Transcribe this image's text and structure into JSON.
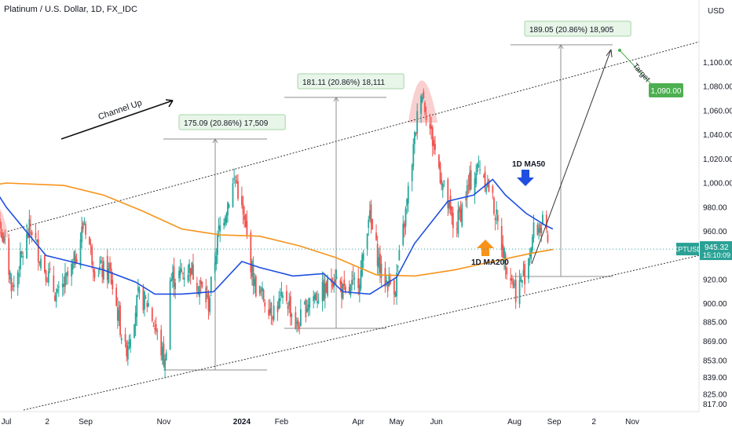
{
  "header": {
    "title": "Platinum / U.S. Dollar, 1D, FX_IDC",
    "currency": "USD"
  },
  "chart_data": {
    "type": "candlestick",
    "symbol": "XPTUSD",
    "timeframe": "1D",
    "ylim": [
      812,
      1120
    ],
    "yticks": [
      817,
      825,
      839,
      853,
      869,
      885,
      900,
      920,
      940,
      960,
      980,
      1000,
      1020,
      1040,
      1060,
      1080,
      1100
    ],
    "ytick_labels": [
      "817.00",
      "825.00",
      "839.00",
      "853.00",
      "869.00",
      "885.00",
      "900.00",
      "920.00",
      "940.00",
      "960.00",
      "980.00",
      "1,000.00",
      "1,020.00",
      "1,040.00",
      "1,060.00",
      "1,080.00",
      "1,100.00"
    ],
    "xticks": [
      {
        "date": "2023-07-01",
        "label": "Jul",
        "bold": false
      },
      {
        "date": "2023-08-02",
        "label": "2",
        "bold": false
      },
      {
        "date": "2023-09-01",
        "label": "Sep",
        "bold": false
      },
      {
        "date": "2023-11-01",
        "label": "Nov",
        "bold": false
      },
      {
        "date": "2024-01-01",
        "label": "2024",
        "bold": true
      },
      {
        "date": "2024-02-01",
        "label": "Feb",
        "bold": false
      },
      {
        "date": "2024-04-01",
        "label": "Apr",
        "bold": false
      },
      {
        "date": "2024-05-01",
        "label": "May",
        "bold": false
      },
      {
        "date": "2024-06-01",
        "label": "Jun",
        "bold": false
      },
      {
        "date": "2024-08-01",
        "label": "Aug",
        "bold": false
      },
      {
        "date": "2024-09-01",
        "label": "Sep",
        "bold": false
      },
      {
        "date": "2024-10-02",
        "label": "2",
        "bold": false
      },
      {
        "date": "2024-11-01",
        "label": "Nov",
        "bold": false
      }
    ],
    "anchors": [
      [
        "2023-06-15",
        950
      ],
      [
        "2023-06-26",
        968
      ],
      [
        "2023-07-06",
        912
      ],
      [
        "2023-07-20",
        965
      ],
      [
        "2023-07-27",
        940
      ],
      [
        "2023-08-10",
        905
      ],
      [
        "2023-08-22",
        930
      ],
      [
        "2023-08-31",
        968
      ],
      [
        "2023-09-08",
        930
      ],
      [
        "2023-09-20",
        925
      ],
      [
        "2023-10-02",
        860
      ],
      [
        "2023-10-12",
        905
      ],
      [
        "2023-10-20",
        900
      ],
      [
        "2023-11-02",
        850
      ],
      [
        "2023-11-06",
        920
      ],
      [
        "2023-11-15",
        925
      ],
      [
        "2023-11-22",
        930
      ],
      [
        "2023-12-06",
        900
      ],
      [
        "2023-12-14",
        960
      ],
      [
        "2023-12-27",
        1005
      ],
      [
        "2024-01-04",
        960
      ],
      [
        "2024-01-11",
        915
      ],
      [
        "2024-01-25",
        895
      ],
      [
        "2024-02-05",
        905
      ],
      [
        "2024-02-13",
        880
      ],
      [
        "2024-02-23",
        905
      ],
      [
        "2024-03-06",
        910
      ],
      [
        "2024-03-13",
        925
      ],
      [
        "2024-03-22",
        905
      ],
      [
        "2024-04-03",
        925
      ],
      [
        "2024-04-09",
        975
      ],
      [
        "2024-04-20",
        920
      ],
      [
        "2024-04-30",
        915
      ],
      [
        "2024-05-08",
        975
      ],
      [
        "2024-05-20",
        1080
      ],
      [
        "2024-05-28",
        1040
      ],
      [
        "2024-06-08",
        990
      ],
      [
        "2024-06-15",
        960
      ],
      [
        "2024-06-27",
        1000
      ],
      [
        "2024-07-05",
        1015
      ],
      [
        "2024-07-14",
        990
      ],
      [
        "2024-07-24",
        940
      ],
      [
        "2024-08-02",
        910
      ],
      [
        "2024-08-09",
        925
      ],
      [
        "2024-08-16",
        960
      ],
      [
        "2024-08-23",
        965
      ],
      [
        "2024-08-28",
        945
      ]
    ],
    "ma50": {
      "name": "1D MA50",
      "color": "#1e4fe0",
      "points": [
        [
          "2023-06-01",
          1030
        ],
        [
          "2023-07-01",
          980
        ],
        [
          "2023-08-01",
          940
        ],
        [
          "2023-08-20",
          935
        ],
        [
          "2023-09-15",
          928
        ],
        [
          "2023-10-10",
          918
        ],
        [
          "2023-10-25",
          908
        ],
        [
          "2023-11-15",
          908
        ],
        [
          "2023-12-10",
          910
        ],
        [
          "2024-01-01",
          935
        ],
        [
          "2024-01-15",
          930
        ],
        [
          "2024-02-10",
          923
        ],
        [
          "2024-03-05",
          925
        ],
        [
          "2024-03-20",
          910
        ],
        [
          "2024-04-10",
          908
        ],
        [
          "2024-05-01",
          922
        ],
        [
          "2024-05-15",
          950
        ],
        [
          "2024-06-10",
          985
        ],
        [
          "2024-06-30",
          990
        ],
        [
          "2024-07-15",
          1003
        ],
        [
          "2024-07-25",
          990
        ],
        [
          "2024-08-10",
          975
        ],
        [
          "2024-08-25",
          965
        ],
        [
          "2024-08-31",
          962
        ]
      ]
    },
    "ma200": {
      "name": "1D MA200",
      "color": "#f7931a",
      "points": [
        [
          "2023-06-01",
          995
        ],
        [
          "2023-07-01",
          1000
        ],
        [
          "2023-08-15",
          998
        ],
        [
          "2023-09-15",
          990
        ],
        [
          "2023-10-15",
          977
        ],
        [
          "2023-11-15",
          962
        ],
        [
          "2023-12-15",
          957
        ],
        [
          "2024-01-15",
          956
        ],
        [
          "2024-02-15",
          948
        ],
        [
          "2024-03-15",
          938
        ],
        [
          "2024-04-15",
          924
        ],
        [
          "2024-05-15",
          923
        ],
        [
          "2024-06-15",
          928
        ],
        [
          "2024-07-15",
          935
        ],
        [
          "2024-08-15",
          942
        ],
        [
          "2024-08-31",
          945
        ]
      ]
    },
    "current_price": {
      "label": "XPTUSD",
      "value": 945.32,
      "value_label": "945.32",
      "countdown": "15:10:09",
      "color": "#2aa195"
    },
    "target": {
      "label": "1,090.00",
      "value": 1090,
      "color": "#4caf50"
    }
  },
  "annotations": {
    "channel_label": "Channel Up",
    "measure_1": "175.09 (20.86%) 17,509",
    "measure_2": "181.11 (20.86%) 18,111",
    "measure_3": "189.05 (20.86%) 18,905",
    "ma50_label": "1D MA50",
    "ma200_label": "1D MA200",
    "target_word": "Target"
  },
  "colors": {
    "up": "#26a69a",
    "down": "#ef5350",
    "channel": "#333333",
    "measure": "#8c8c8c",
    "highlight": "#f8bfbf"
  }
}
